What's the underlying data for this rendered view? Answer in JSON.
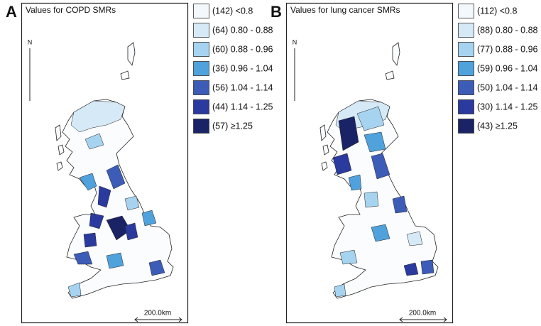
{
  "panels": [
    {
      "letter": "A",
      "title": "Values for COPD SMRs",
      "north": "N",
      "scale": "200.0km",
      "legend": [
        {
          "label": "(142) <0.8",
          "color": "#f3f8fd"
        },
        {
          "label": "(64) 0.80 - 0.88",
          "color": "#d6e9f6"
        },
        {
          "label": "(60) 0.88 - 0.96",
          "color": "#a6d3f0"
        },
        {
          "label": "(36) 0.96 - 1.04",
          "color": "#4fa2dc"
        },
        {
          "label": "(56) 1.04 - 1.14",
          "color": "#3c5cb8"
        },
        {
          "label": "(44) 1.14 - 1.25",
          "color": "#2b3a9f"
        },
        {
          "label": "(57)  ≥1.25",
          "color": "#1a2366"
        }
      ]
    },
    {
      "letter": "B",
      "title": "Values for lung cancer SMRs",
      "north": "N",
      "scale": "200.0km",
      "legend": [
        {
          "label": "(112) <0.8",
          "color": "#f3f8fd"
        },
        {
          "label": "(88) 0.80 - 0.88",
          "color": "#d6e9f6"
        },
        {
          "label": "(77) 0.88 - 0.96",
          "color": "#a6d3f0"
        },
        {
          "label": "(59) 0.96 - 1.04",
          "color": "#4fa2dc"
        },
        {
          "label": "(50) 1.04 - 1.14",
          "color": "#3c5cb8"
        },
        {
          "label": "(30) 1.14 - 1.25",
          "color": "#2b3a9f"
        },
        {
          "label": "(43) ≥1.25",
          "color": "#1a2366"
        }
      ]
    }
  ]
}
